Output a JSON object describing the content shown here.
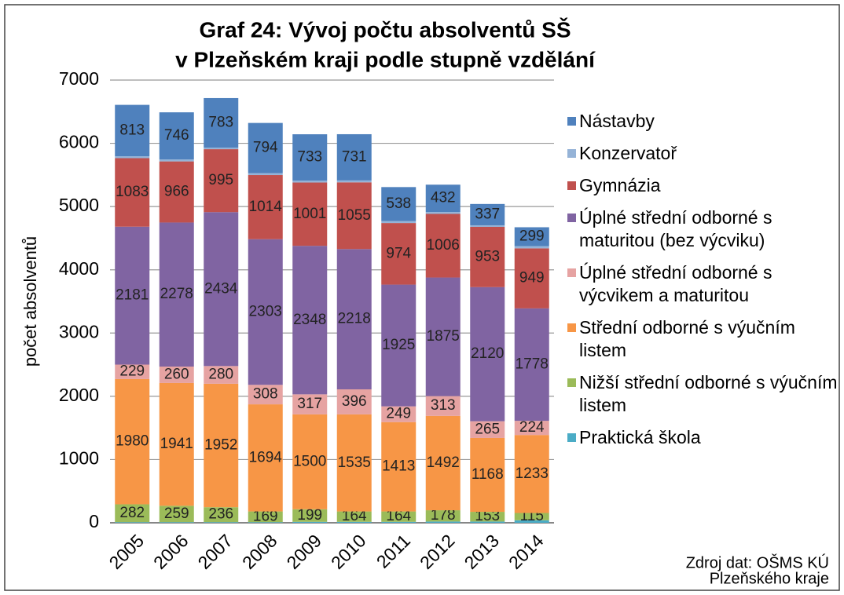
{
  "chart_data": {
    "type": "stacked_bar",
    "title": [
      "Graf  24: Vývoj počtu absolventů SŠ",
      "v Plzeňském kraji podle stupně vzdělání"
    ],
    "ylabel": "počet absolventů",
    "source": [
      "Zdroj dat: OŠMS KÚ",
      "Plzeňského kraje"
    ],
    "categories": [
      "2005",
      "2006",
      "2007",
      "2008",
      "2009",
      "2010",
      "2011",
      "2012",
      "2013",
      "2014"
    ],
    "ylim": [
      0,
      7000
    ],
    "yticks": [
      0,
      1000,
      2000,
      3000,
      4000,
      5000,
      6000,
      7000
    ],
    "grid": true,
    "series": [
      {
        "name": "Praktická škola",
        "color": "#4bacc6",
        "labels": false,
        "values": [
          10,
          10,
          10,
          10,
          15,
          15,
          15,
          20,
          20,
          40
        ]
      },
      {
        "name": "Nižší střední odborné s výučním listem",
        "color": "#9bbb59",
        "labels": true,
        "values": [
          282,
          259,
          236,
          169,
          199,
          164,
          164,
          178,
          153,
          115
        ]
      },
      {
        "name": "Střední odborné s výučním listem",
        "color": "#f79646",
        "labels": true,
        "values": [
          1980,
          1941,
          1952,
          1694,
          1500,
          1535,
          1413,
          1492,
          1168,
          1233
        ]
      },
      {
        "name": "Úplné střední odborné s výcvikem a maturitou",
        "color": "#e6a3a2",
        "labels": true,
        "values": [
          229,
          260,
          280,
          308,
          317,
          396,
          249,
          313,
          265,
          224
        ]
      },
      {
        "name": "Úplné střední odborné s maturitou (bez výcviku)",
        "color": "#8064a2",
        "labels": true,
        "values": [
          2181,
          2278,
          2434,
          2303,
          2348,
          2218,
          1925,
          1875,
          2120,
          1778
        ]
      },
      {
        "name": "Gymnázia",
        "color": "#c0504d",
        "labels": true,
        "values": [
          1083,
          966,
          995,
          1014,
          1001,
          1055,
          974,
          1006,
          953,
          949
        ]
      },
      {
        "name": "Konzervatoř",
        "color": "#95b3d7",
        "labels": false,
        "values": [
          30,
          30,
          25,
          30,
          30,
          30,
          30,
          30,
          25,
          35
        ]
      },
      {
        "name": "Nástavby",
        "color": "#4f81bd",
        "labels": true,
        "values": [
          813,
          746,
          783,
          794,
          733,
          731,
          538,
          432,
          337,
          299
        ]
      }
    ]
  }
}
